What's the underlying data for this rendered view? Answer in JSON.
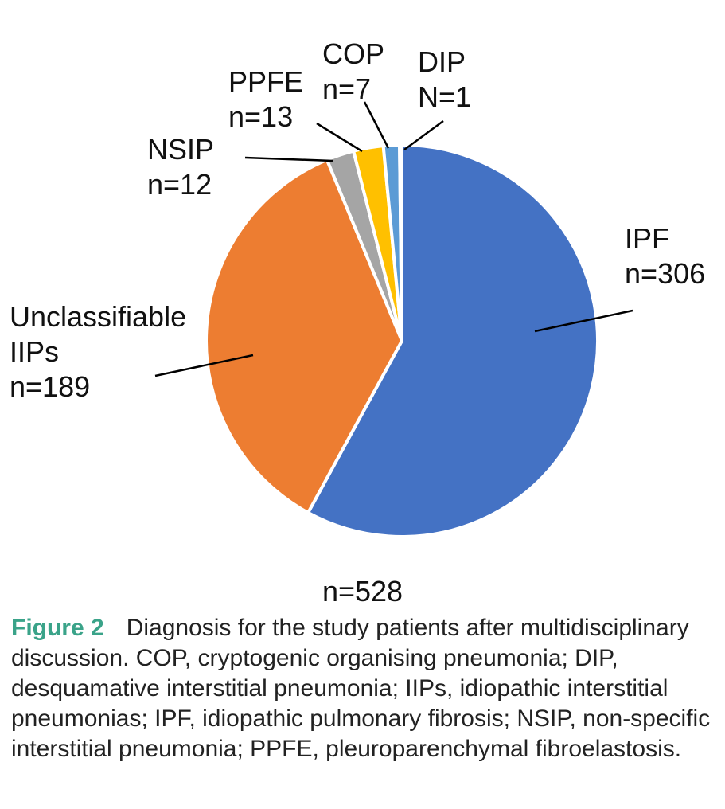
{
  "chart_data": {
    "type": "pie",
    "total_label": "n=528",
    "slices": [
      {
        "name": "IPF",
        "count_label": "n=306",
        "value": 306,
        "color": "#4472C4"
      },
      {
        "name": "Unclassifiable IIPs",
        "name_lines": [
          "Unclassifiable",
          "IIPs"
        ],
        "count_label": "n=189",
        "value": 189,
        "color": "#ED7D31"
      },
      {
        "name": "NSIP",
        "count_label": "n=12",
        "value": 12,
        "color": "#A5A5A5"
      },
      {
        "name": "PPFE",
        "count_label": "n=13",
        "value": 13,
        "color": "#FFC000"
      },
      {
        "name": "COP",
        "count_label": "n=7",
        "value": 7,
        "color": "#5B9BD5"
      },
      {
        "name": "DIP",
        "count_label": "N=1",
        "value": 1,
        "color": "#70AD47"
      }
    ]
  },
  "caption": {
    "figure_label": "Figure 2",
    "text": "Diagnosis for the study patients after multidisciplinary discussion. COP, cryptogenic organising pneumonia; DIP, desquamative interstitial pneumonia; IIPs, idiopathic interstitial pneumonias; IPF, idiopathic pulmonary fibrosis; NSIP, non-specific interstitial pneumonia; PPFE, pleuroparenchymal fibroelastosis."
  }
}
